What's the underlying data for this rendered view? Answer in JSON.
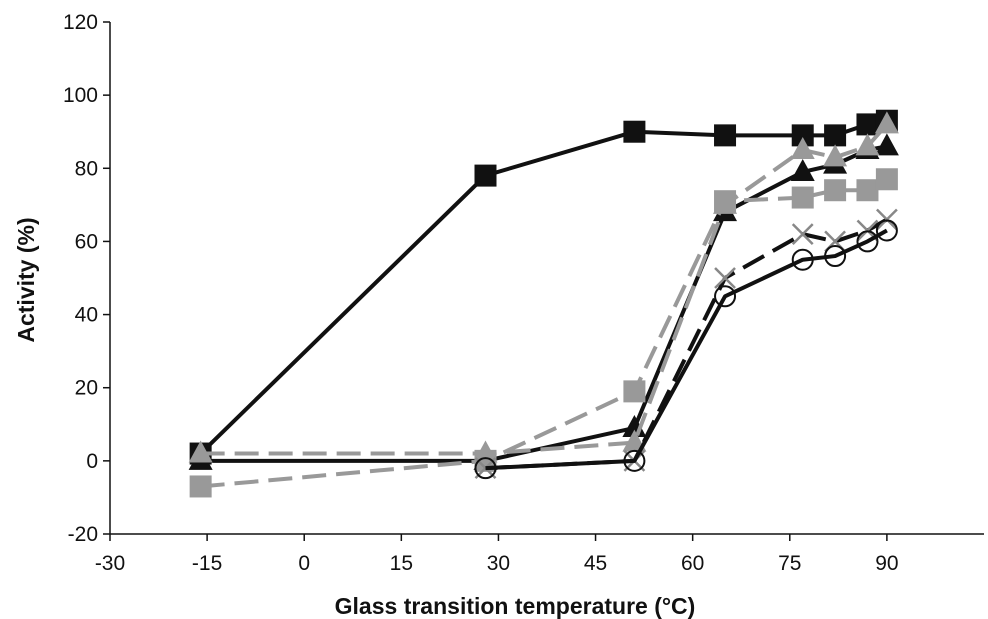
{
  "chart_data": {
    "type": "line",
    "title": "",
    "xlabel": "Glass transition temperature (°C)",
    "ylabel": "Activity (%)",
    "xlim": [
      -30,
      105
    ],
    "ylim": [
      -20,
      120
    ],
    "xticks": [
      -30,
      -15,
      0,
      15,
      30,
      45,
      60,
      75,
      90
    ],
    "yticks": [
      -20,
      0,
      20,
      40,
      60,
      80,
      100,
      120
    ],
    "grid": false,
    "legend": "none",
    "series": [
      {
        "marker": "square",
        "color": "#111111",
        "dash": "solid",
        "x": [
          -16,
          28,
          51,
          65,
          77,
          82,
          87,
          90
        ],
        "y": [
          2,
          78,
          90,
          89,
          89,
          89,
          92,
          93
        ]
      },
      {
        "marker": "triangle",
        "color": "#111111",
        "dash": "solid",
        "x": [
          -16,
          28,
          51,
          65,
          77,
          82,
          87,
          90
        ],
        "y": [
          0,
          0,
          9,
          68,
          79,
          81,
          85,
          86
        ]
      },
      {
        "marker": "square",
        "color": "#999999",
        "dash": "dashed",
        "x": [
          -16,
          28,
          51,
          65,
          77,
          82,
          87,
          90
        ],
        "y": [
          -7,
          0,
          19,
          71,
          72,
          74,
          74,
          77
        ]
      },
      {
        "marker": "triangle",
        "color": "#999999",
        "dash": "dashed",
        "x": [
          -16,
          28,
          51,
          65,
          77,
          82,
          87,
          90
        ],
        "y": [
          2,
          2,
          5,
          70,
          85,
          83,
          86,
          92
        ]
      },
      {
        "marker": "x",
        "color": "#111111",
        "dash": "dashed",
        "x": [
          28,
          51,
          65,
          77,
          82,
          87,
          90
        ],
        "y": [
          -2,
          0,
          50,
          62,
          60,
          63,
          66
        ]
      },
      {
        "marker": "circle",
        "color": "#111111",
        "dash": "solid",
        "x": [
          28,
          51,
          65,
          77,
          82,
          87,
          90
        ],
        "y": [
          -2,
          0,
          45,
          55,
          56,
          60,
          63
        ]
      }
    ]
  }
}
